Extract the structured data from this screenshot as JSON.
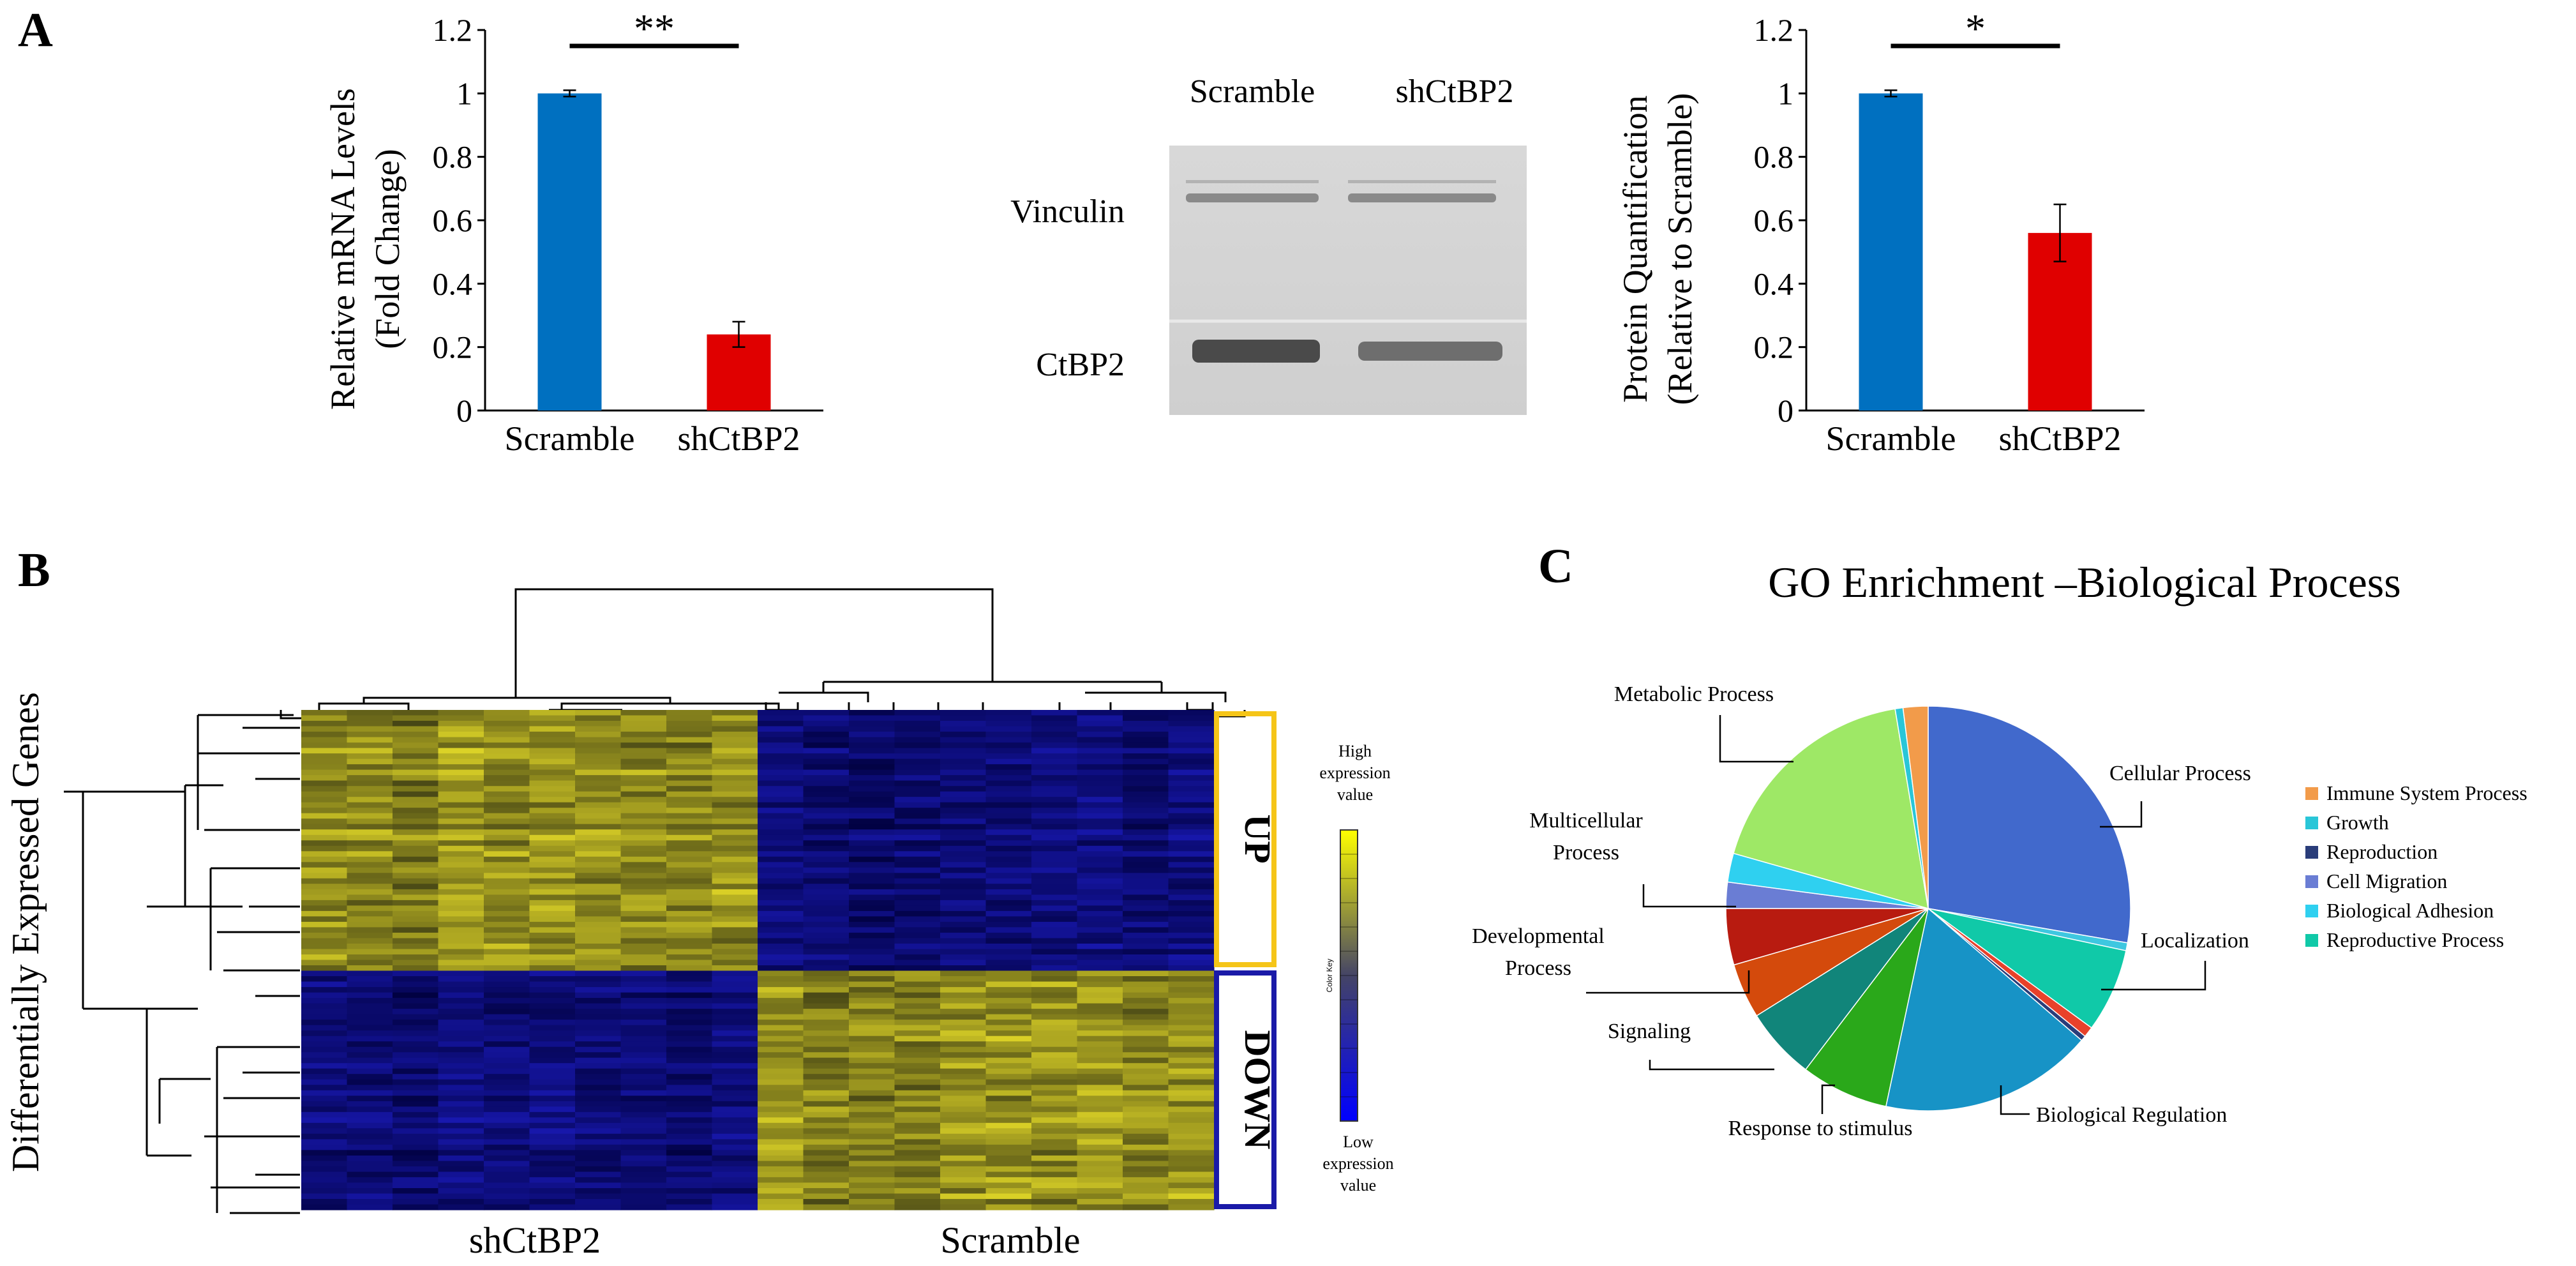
{
  "panel_labels": {
    "a": "A",
    "b": "B",
    "c": "C"
  },
  "blot": {
    "lane_labels": [
      "Scramble",
      "shCtBP2"
    ],
    "band_labels": [
      "Vinculin",
      "CtBP2"
    ]
  },
  "heatmap": {
    "ylabel": "Differentially Expressed Genes",
    "group_labels": [
      "shCtBP2",
      "Scramble"
    ],
    "cluster_labels": [
      "UP",
      "DOWN"
    ],
    "up_color": "#f5c518",
    "down_color": "#1a1aa8",
    "key_high": [
      "High",
      "expression",
      "value"
    ],
    "key_title": "Color Key",
    "key_low": [
      "Low",
      "expression",
      "value"
    ],
    "low_color": "#0000ff",
    "high_color": "#ffff00"
  },
  "chart_data": [
    {
      "type": "bar",
      "panel": "A",
      "categories": [
        "Scramble",
        "shCtBP2"
      ],
      "values": [
        1.0,
        0.24
      ],
      "errors": [
        0.01,
        0.04
      ],
      "colors": [
        "#0070c0",
        "#e00000"
      ],
      "ylabel": "Relative mRNA Levels",
      "ylabel2": "(Fold Change)",
      "ylim": [
        0,
        1.2
      ],
      "yticks": [
        "0",
        "0.2",
        "0.4",
        "0.6",
        "0.8",
        "1",
        "1.2"
      ],
      "significance": "**"
    },
    {
      "type": "bar",
      "panel": "A",
      "categories": [
        "Scramble",
        "shCtBP2"
      ],
      "values": [
        1.0,
        0.56
      ],
      "errors": [
        0.01,
        0.09
      ],
      "colors": [
        "#0070c0",
        "#e00000"
      ],
      "ylabel": "Protein Quantification",
      "ylabel2": "(Relative to Scramble)",
      "ylim": [
        0,
        1.2
      ],
      "yticks": [
        "0",
        "0.2",
        "0.4",
        "0.6",
        "0.8",
        "1",
        "1.2"
      ],
      "significance": "*"
    },
    {
      "type": "pie",
      "panel": "C",
      "title": "GO Enrichment –Biological Process",
      "slices": [
        {
          "label": "Cellular Process",
          "value": 26.5,
          "color": "#4169cc"
        },
        {
          "label": "",
          "value": 0.6,
          "color": "#3ec7e0"
        },
        {
          "label": "Localization",
          "value": 6.4,
          "color": "#10c9a8"
        },
        {
          "label": "",
          "value": 0.8,
          "color": "#e8412a"
        },
        {
          "label": "",
          "value": 0.4,
          "color": "#2a3d7a"
        },
        {
          "label": "Biological Regulation",
          "value": 16.3,
          "color": "#1793c6"
        },
        {
          "label": "Response to stimulus",
          "value": 6.7,
          "color": "#2aa81a"
        },
        {
          "label": "Signaling",
          "value": 5.5,
          "color": "#11857a"
        },
        {
          "label": "Developmental Process",
          "value": 4.2,
          "color": "#d44a0c"
        },
        {
          "label": "",
          "value": 4.3,
          "color": "#b81b10"
        },
        {
          "label": "Multicellular Process",
          "value": 2.0,
          "color": "#6a7dd4"
        },
        {
          "label": "",
          "value": 2.2,
          "color": "#2fd0f0"
        },
        {
          "label": "Metabolic Process",
          "value": 17.2,
          "color": "#9ee866"
        },
        {
          "label": "",
          "value": 0.6,
          "color": "#29c6d8"
        },
        {
          "label": "",
          "value": 1.9,
          "color": "#f29b4a"
        }
      ],
      "legend": [
        {
          "label": "Immune System Process",
          "color": "#f29b4a"
        },
        {
          "label": "Growth",
          "color": "#29c6d8"
        },
        {
          "label": "Reproduction",
          "color": "#2a3d7a"
        },
        {
          "label": "Cell Migration",
          "color": "#6a7dd4"
        },
        {
          "label": "Biological Adhesion",
          "color": "#2fd0f0"
        },
        {
          "label": "Reproductive Process",
          "color": "#10c9a8"
        }
      ]
    }
  ]
}
